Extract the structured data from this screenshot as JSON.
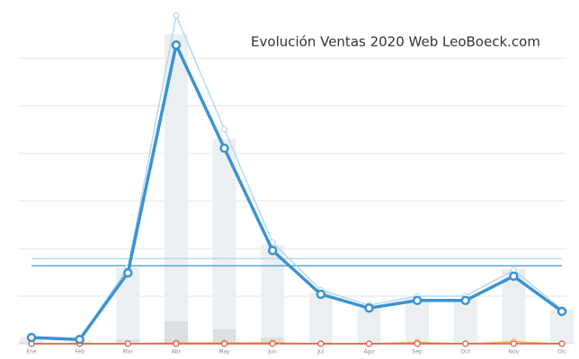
{
  "chart_data": {
    "type": "line",
    "title": "Evolución Ventas 2020 Web LeoBoeck.com",
    "categories": [
      "Ene",
      "Feb",
      "Mar",
      "Abr",
      "May",
      "Jun",
      "Jul",
      "Ago",
      "Sep",
      "Oct",
      "Nov",
      "Dic"
    ],
    "ylim": [
      0,
      70
    ],
    "yticks": [
      10,
      20,
      30,
      40,
      50,
      60
    ],
    "grid": true,
    "series": [
      {
        "kind": "bar",
        "color": "#eceff1",
        "values": [
          1.3,
          0.6,
          16,
          65.1,
          43,
          20.8,
          10.9,
          7.7,
          9.4,
          9.4,
          15.7,
          7.2
        ]
      },
      {
        "kind": "bar",
        "color": "#dcdfe2",
        "values": [
          0.3,
          0.2,
          0.9,
          4.7,
          3,
          1.3,
          0.3,
          0.2,
          0.3,
          0.2,
          0.4,
          0.2
        ]
      },
      {
        "kind": "line",
        "color": "#b5d8ee",
        "width": 1.5,
        "values": [
          1.3,
          0.9,
          16,
          69,
          45.1,
          21.3,
          11.3,
          8.1,
          10,
          10,
          15.5,
          7.2
        ]
      },
      {
        "kind": "line",
        "color": "#f5b041",
        "width": 1.5,
        "values": [
          0,
          0,
          0,
          0.2,
          0.2,
          0.2,
          0,
          0,
          0.3,
          0,
          0.4,
          0
        ]
      },
      {
        "kind": "line",
        "color": "#e0553f",
        "width": 1.5,
        "values": [
          0,
          0,
          0,
          0,
          0,
          0,
          0,
          0,
          0,
          0,
          0,
          0
        ]
      },
      {
        "kind": "line",
        "color": "#3a93d3",
        "width": 3.5,
        "values": [
          1.3,
          0.9,
          14.9,
          62.8,
          41.1,
          19.6,
          10.4,
          7.5,
          9.1,
          9.1,
          14.2,
          6.8
        ]
      }
    ],
    "reference_lines": [
      {
        "color": "#a9d3ec",
        "value": 17.9
      },
      {
        "color": "#2f86c6",
        "value": 16.4
      }
    ]
  }
}
